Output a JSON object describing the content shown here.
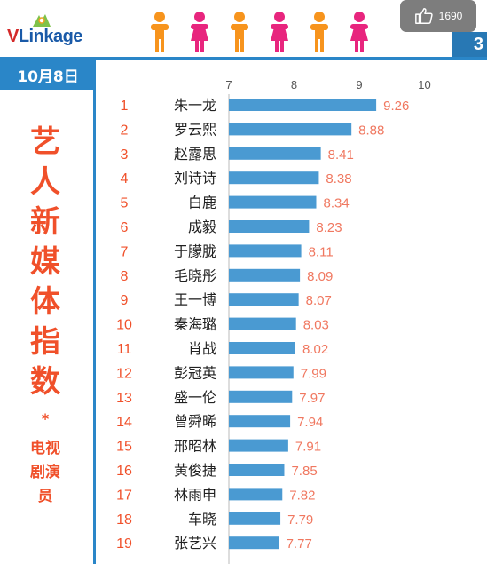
{
  "brand": {
    "logo_text_v": "V",
    "logo_text_rest": "Linkage"
  },
  "date": "10月8日",
  "side_title": "艺人新媒体指数",
  "side_star": "*",
  "side_subtitle": "电视剧演员",
  "like": {
    "count": "1690"
  },
  "corner_number": "3",
  "colors": {
    "accent_blue": "#2a86c8",
    "title_orange": "#f0502a",
    "bar": "#4a9ad2",
    "value_text": "#f07860",
    "male_icon": "#f7941d",
    "female_icon": "#e8257e"
  },
  "icons": [
    "male-figure-icon",
    "female-figure-icon",
    "thumbs-up-icon"
  ],
  "chart_data": {
    "type": "bar",
    "orientation": "horizontal",
    "xlim": [
      7,
      10
    ],
    "ticks": [
      7,
      8,
      9,
      10
    ],
    "categories": [
      "朱一龙",
      "罗云熙",
      "赵露思",
      "刘诗诗",
      "白鹿",
      "成毅",
      "于朦胧",
      "毛晓彤",
      "王一博",
      "秦海璐",
      "肖战",
      "彭冠英",
      "盛一伦",
      "曾舜晞",
      "邢昭林",
      "黄俊捷",
      "林雨申",
      "车晓",
      "张艺兴"
    ],
    "ranks": [
      "1",
      "2",
      "3",
      "4",
      "5",
      "6",
      "7",
      "8",
      "9",
      "10",
      "11",
      "12",
      "13",
      "14",
      "15",
      "16",
      "17",
      "18",
      "19"
    ],
    "values": [
      9.26,
      8.88,
      8.41,
      8.38,
      8.34,
      8.23,
      8.11,
      8.09,
      8.07,
      8.03,
      8.02,
      7.99,
      7.97,
      7.94,
      7.91,
      7.85,
      7.82,
      7.79,
      7.77
    ],
    "value_labels": [
      "9.26",
      "8.88",
      "8.41",
      "8.38",
      "8.34",
      "8.23",
      "8.11",
      "8.09",
      "8.07",
      "8.03",
      "8.02",
      "7.99",
      "7.97",
      "7.94",
      "7.91",
      "7.85",
      "7.82",
      "7.79",
      "7.77"
    ],
    "grid": false,
    "legend": "none"
  }
}
